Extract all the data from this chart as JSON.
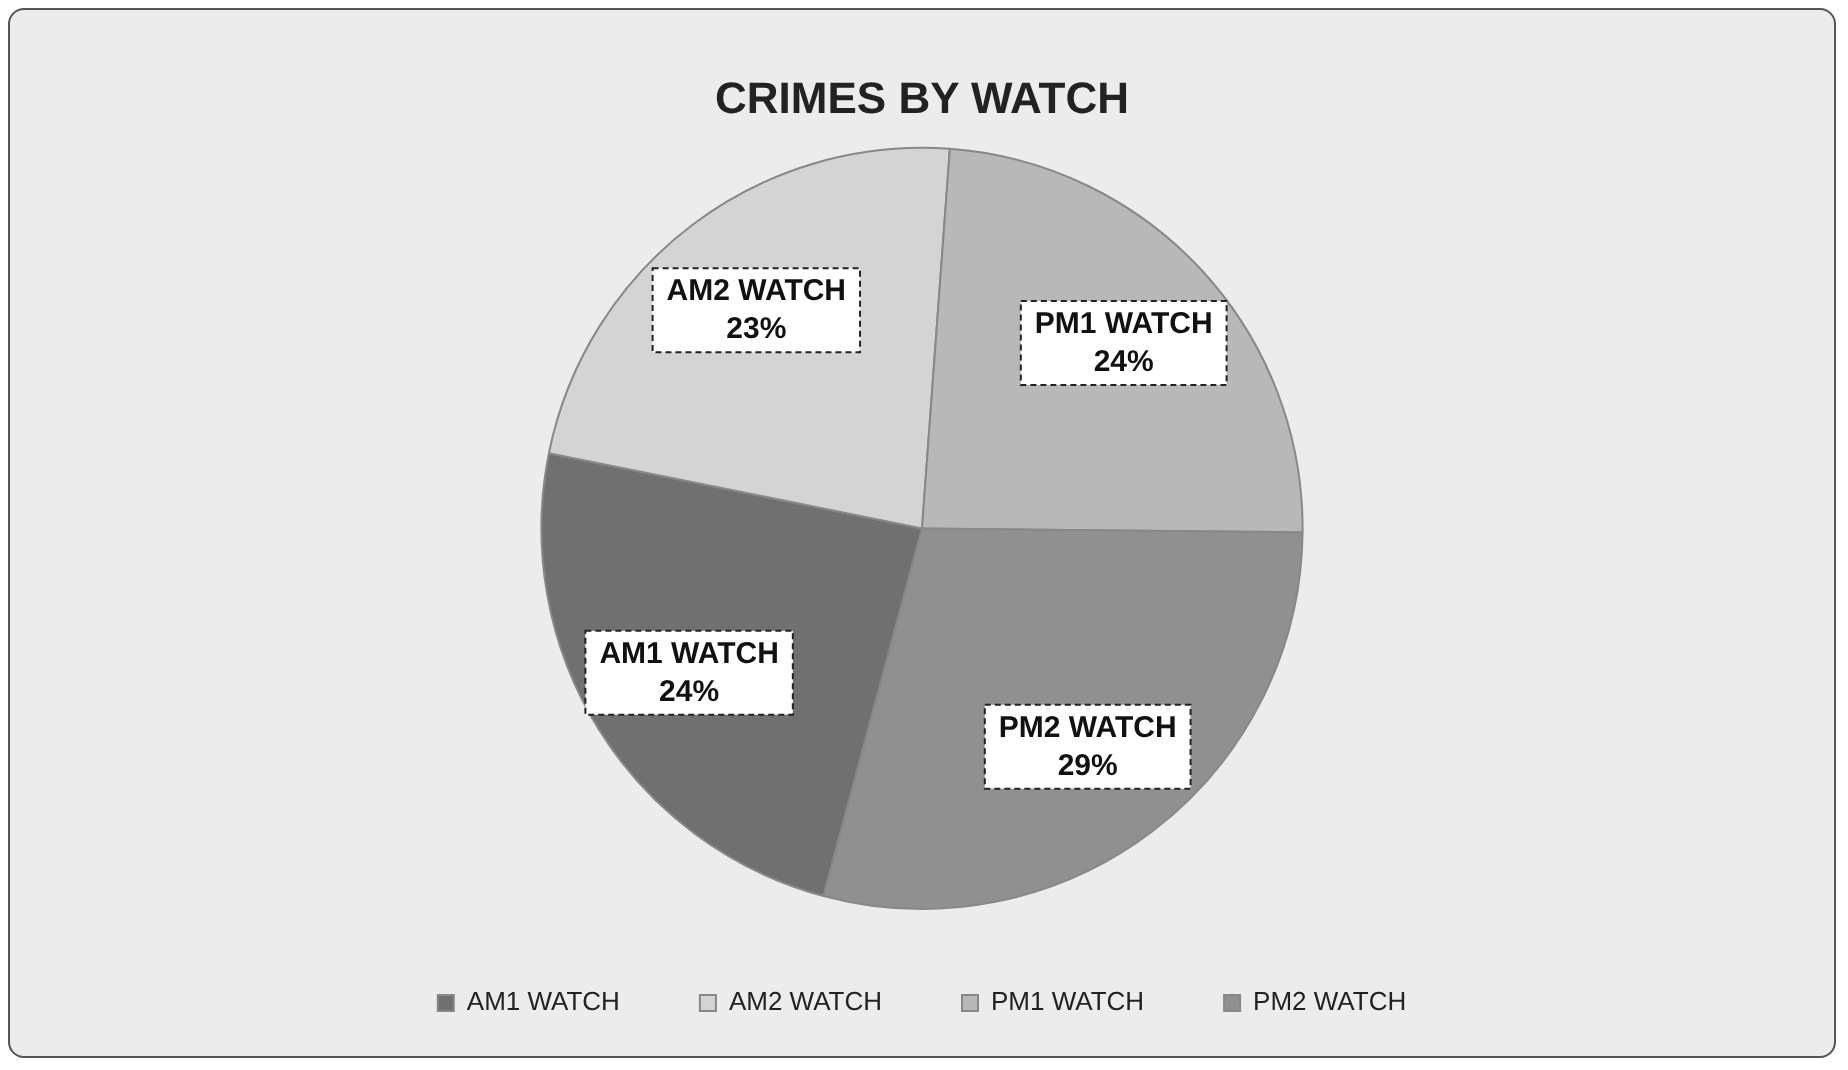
{
  "chart_data": {
    "type": "pie",
    "title": "CRIMES BY WATCH",
    "categories": [
      "AM1 WATCH",
      "AM2 WATCH",
      "PM1 WATCH",
      "PM2 WATCH"
    ],
    "values": [
      24,
      23,
      24,
      29
    ],
    "value_labels": [
      "24%",
      "23%",
      "24%",
      "29%"
    ],
    "colors": [
      "#707070",
      "#d4d4d4",
      "#b8b8b8",
      "#909090"
    ],
    "legend": "bottom"
  }
}
